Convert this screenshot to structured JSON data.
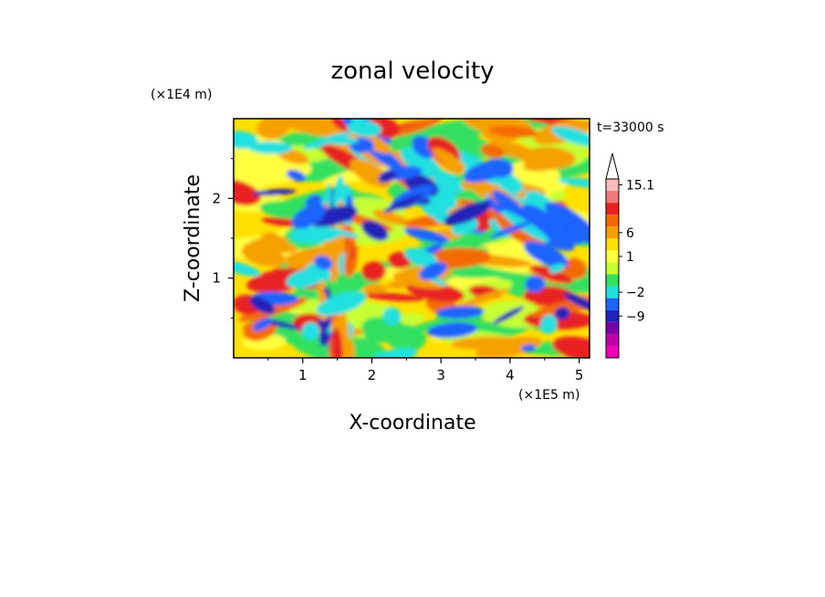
{
  "chart_data": {
    "type": "heatmap",
    "title": "zonal velocity",
    "xlabel": "X-coordinate",
    "ylabel": "Z-coordinate",
    "x_unit": "(×1E5 m)",
    "y_unit": "(×1E4 m)",
    "time_label": "t=33000 s",
    "xlim": [
      0,
      5.15
    ],
    "ylim": [
      0,
      3.0
    ],
    "x_ticks": [
      "1",
      "2",
      "3",
      "4",
      "5"
    ],
    "y_ticks": [
      "1",
      "2"
    ],
    "colorbar": {
      "labels": [
        "15.1",
        "6",
        "1",
        "−2",
        "−9"
      ],
      "colors": [
        "#ffbcbc",
        "#f07a78",
        "#e82020",
        "#f46a00",
        "#f6a000",
        "#ffe000",
        "#ffff40",
        "#c8ff32",
        "#30e060",
        "#20e0e0",
        "#1e64ff",
        "#2020b8",
        "#7800a8",
        "#c000a8",
        "#f000b8"
      ],
      "extend": "max"
    }
  }
}
